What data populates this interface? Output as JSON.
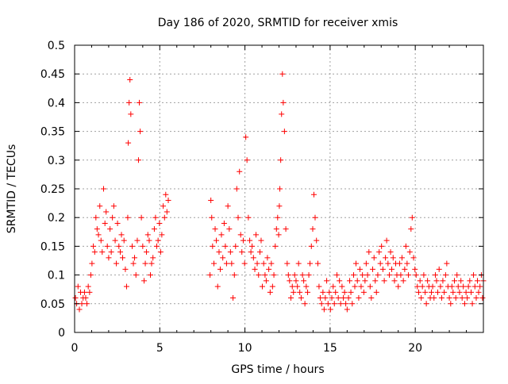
{
  "chart_data": {
    "type": "scatter",
    "title": "Day 186 of 2020, SRMTID for receiver xmis",
    "xlabel": "GPS time / hours",
    "ylabel": "SRMTID / TECUs",
    "xlim": [
      0,
      24
    ],
    "ylim": [
      0,
      0.5
    ],
    "xticks": [
      0,
      5,
      10,
      15,
      20
    ],
    "xtick_labels": [
      "0",
      "5",
      "10",
      "15",
      "20"
    ],
    "yticks": [
      0,
      0.05,
      0.1,
      0.15,
      0.2,
      0.25,
      0.3,
      0.35,
      0.4,
      0.45,
      0.5
    ],
    "ytick_labels": [
      "0",
      "0.05",
      "0.1",
      "0.15",
      "0.2",
      "0.25",
      "0.3",
      "0.35",
      "0.4",
      "0.45",
      "0.5"
    ],
    "grid": true,
    "marker": "+",
    "series": [
      {
        "name": "SRMTID",
        "color": "#ff0000",
        "x": [
          0.05,
          0.12,
          0.2,
          0.28,
          0.35,
          0.42,
          0.5,
          0.58,
          0.65,
          0.72,
          0.8,
          0.88,
          0.95,
          1.02,
          1.1,
          1.18,
          1.25,
          1.32,
          1.4,
          1.48,
          1.55,
          1.62,
          1.7,
          1.78,
          1.85,
          1.92,
          2.0,
          2.08,
          2.15,
          2.22,
          2.3,
          2.38,
          2.45,
          2.52,
          2.6,
          2.68,
          2.75,
          2.82,
          2.9,
          2.98,
          3.05,
          3.12,
          3.15,
          3.2,
          3.25,
          3.3,
          3.38,
          3.45,
          3.52,
          3.6,
          3.68,
          3.75,
          3.8,
          3.85,
          3.92,
          4.0,
          4.08,
          4.15,
          4.22,
          4.3,
          4.38,
          4.45,
          4.52,
          4.6,
          4.68,
          4.75,
          4.82,
          4.9,
          4.98,
          5.05,
          5.12,
          5.2,
          5.28,
          5.35,
          5.42,
          5.5,
          7.95,
          8.0,
          8.05,
          8.1,
          8.18,
          8.25,
          8.32,
          8.4,
          8.48,
          8.55,
          8.62,
          8.7,
          8.78,
          8.85,
          8.92,
          9.0,
          9.08,
          9.15,
          9.22,
          9.3,
          9.38,
          9.45,
          9.52,
          9.6,
          9.68,
          9.75,
          9.82,
          9.9,
          9.98,
          10.05,
          10.12,
          10.2,
          10.28,
          10.35,
          10.42,
          10.5,
          10.58,
          10.65,
          10.72,
          10.8,
          10.88,
          10.95,
          11.02,
          11.1,
          11.18,
          11.25,
          11.32,
          11.4,
          11.48,
          11.55,
          11.62,
          11.7,
          11.78,
          11.85,
          11.92,
          11.98,
          12.02,
          12.05,
          12.1,
          12.15,
          12.2,
          12.25,
          12.32,
          12.4,
          12.48,
          12.55,
          12.62,
          12.7,
          12.78,
          12.85,
          12.92,
          13.0,
          13.08,
          13.15,
          13.22,
          13.3,
          13.38,
          13.45,
          13.52,
          13.6,
          13.68,
          13.75,
          13.82,
          13.9,
          13.98,
          14.05,
          14.12,
          14.2,
          14.28,
          14.35,
          14.42,
          14.5,
          14.58,
          14.65,
          14.72,
          14.8,
          14.88,
          14.95,
          15.02,
          15.1,
          15.18,
          15.25,
          15.32,
          15.4,
          15.48,
          15.55,
          15.62,
          15.7,
          15.78,
          15.85,
          15.92,
          16.0,
          16.08,
          16.15,
          16.22,
          16.3,
          16.38,
          16.45,
          16.52,
          16.6,
          16.68,
          16.75,
          16.82,
          16.9,
          16.98,
          17.05,
          17.12,
          17.2,
          17.28,
          17.35,
          17.42,
          17.5,
          17.58,
          17.65,
          17.72,
          17.8,
          17.88,
          17.95,
          18.02,
          18.1,
          18.18,
          18.25,
          18.32,
          18.4,
          18.48,
          18.55,
          18.62,
          18.7,
          18.78,
          18.85,
          18.92,
          19.0,
          19.08,
          19.15,
          19.22,
          19.3,
          19.38,
          19.45,
          19.52,
          19.6,
          19.68,
          19.75,
          19.82,
          19.9,
          19.98,
          20.05,
          20.12,
          20.2,
          20.28,
          20.35,
          20.42,
          20.5,
          20.58,
          20.65,
          20.72,
          20.8,
          20.88,
          20.95,
          21.02,
          21.1,
          21.18,
          21.25,
          21.32,
          21.4,
          21.48,
          21.55,
          21.62,
          21.7,
          21.78,
          21.85,
          21.92,
          22.0,
          22.08,
          22.15,
          22.22,
          22.3,
          22.38,
          22.45,
          22.52,
          22.6,
          22.68,
          22.75,
          22.82,
          22.9,
          22.98,
          23.05,
          23.12,
          23.2,
          23.28,
          23.35,
          23.42,
          23.5,
          23.58,
          23.65,
          23.72,
          23.8,
          23.88,
          23.95,
          24.0
        ],
        "y": [
          0.06,
          0.05,
          0.08,
          0.04,
          0.07,
          0.05,
          0.06,
          0.07,
          0.06,
          0.05,
          0.08,
          0.07,
          0.1,
          0.12,
          0.15,
          0.14,
          0.2,
          0.18,
          0.17,
          0.22,
          0.16,
          0.14,
          0.25,
          0.19,
          0.21,
          0.15,
          0.13,
          0.18,
          0.14,
          0.2,
          0.22,
          0.16,
          0.12,
          0.19,
          0.15,
          0.14,
          0.17,
          0.13,
          0.16,
          0.11,
          0.08,
          0.2,
          0.33,
          0.4,
          0.44,
          0.38,
          0.15,
          0.12,
          0.13,
          0.1,
          0.16,
          0.3,
          0.4,
          0.35,
          0.2,
          0.15,
          0.09,
          0.12,
          0.14,
          0.17,
          0.16,
          0.1,
          0.12,
          0.13,
          0.18,
          0.2,
          0.15,
          0.16,
          0.19,
          0.14,
          0.17,
          0.22,
          0.2,
          0.24,
          0.21,
          0.23,
          0.1,
          0.23,
          0.2,
          0.15,
          0.12,
          0.18,
          0.16,
          0.08,
          0.14,
          0.11,
          0.17,
          0.13,
          0.19,
          0.15,
          0.12,
          0.22,
          0.18,
          0.14,
          0.12,
          0.06,
          0.1,
          0.15,
          0.25,
          0.2,
          0.28,
          0.17,
          0.14,
          0.16,
          0.12,
          0.34,
          0.3,
          0.2,
          0.16,
          0.14,
          0.15,
          0.13,
          0.11,
          0.17,
          0.12,
          0.1,
          0.14,
          0.16,
          0.08,
          0.12,
          0.1,
          0.09,
          0.13,
          0.11,
          0.07,
          0.12,
          0.08,
          0.1,
          0.15,
          0.18,
          0.2,
          0.17,
          0.22,
          0.25,
          0.3,
          0.38,
          0.45,
          0.4,
          0.35,
          0.18,
          0.12,
          0.1,
          0.09,
          0.06,
          0.08,
          0.07,
          0.1,
          0.09,
          0.08,
          0.12,
          0.07,
          0.06,
          0.1,
          0.09,
          0.05,
          0.08,
          0.07,
          0.1,
          0.12,
          0.15,
          0.18,
          0.24,
          0.2,
          0.16,
          0.12,
          0.08,
          0.06,
          0.05,
          0.07,
          0.04,
          0.06,
          0.09,
          0.05,
          0.07,
          0.04,
          0.06,
          0.08,
          0.05,
          0.07,
          0.1,
          0.06,
          0.09,
          0.05,
          0.08,
          0.06,
          0.07,
          0.05,
          0.04,
          0.06,
          0.09,
          0.07,
          0.05,
          0.1,
          0.08,
          0.12,
          0.09,
          0.06,
          0.11,
          0.08,
          0.1,
          0.07,
          0.09,
          0.12,
          0.1,
          0.14,
          0.08,
          0.06,
          0.11,
          0.13,
          0.09,
          0.07,
          0.1,
          0.14,
          0.12,
          0.15,
          0.11,
          0.09,
          0.13,
          0.16,
          0.12,
          0.1,
          0.14,
          0.11,
          0.13,
          0.09,
          0.12,
          0.1,
          0.08,
          0.12,
          0.1,
          0.13,
          0.09,
          0.11,
          0.15,
          0.12,
          0.1,
          0.14,
          0.18,
          0.2,
          0.13,
          0.11,
          0.1,
          0.08,
          0.07,
          0.09,
          0.06,
          0.08,
          0.1,
          0.07,
          0.05,
          0.09,
          0.08,
          0.06,
          0.07,
          0.08,
          0.06,
          0.1,
          0.09,
          0.07,
          0.11,
          0.08,
          0.06,
          0.09,
          0.07,
          0.1,
          0.12,
          0.08,
          0.06,
          0.05,
          0.08,
          0.07,
          0.09,
          0.06,
          0.1,
          0.08,
          0.07,
          0.09,
          0.06,
          0.08,
          0.05,
          0.07,
          0.06,
          0.08,
          0.09,
          0.07,
          0.05,
          0.1,
          0.08,
          0.06,
          0.09,
          0.07,
          0.08,
          0.1,
          0.06,
          0.09
        ]
      }
    ]
  }
}
